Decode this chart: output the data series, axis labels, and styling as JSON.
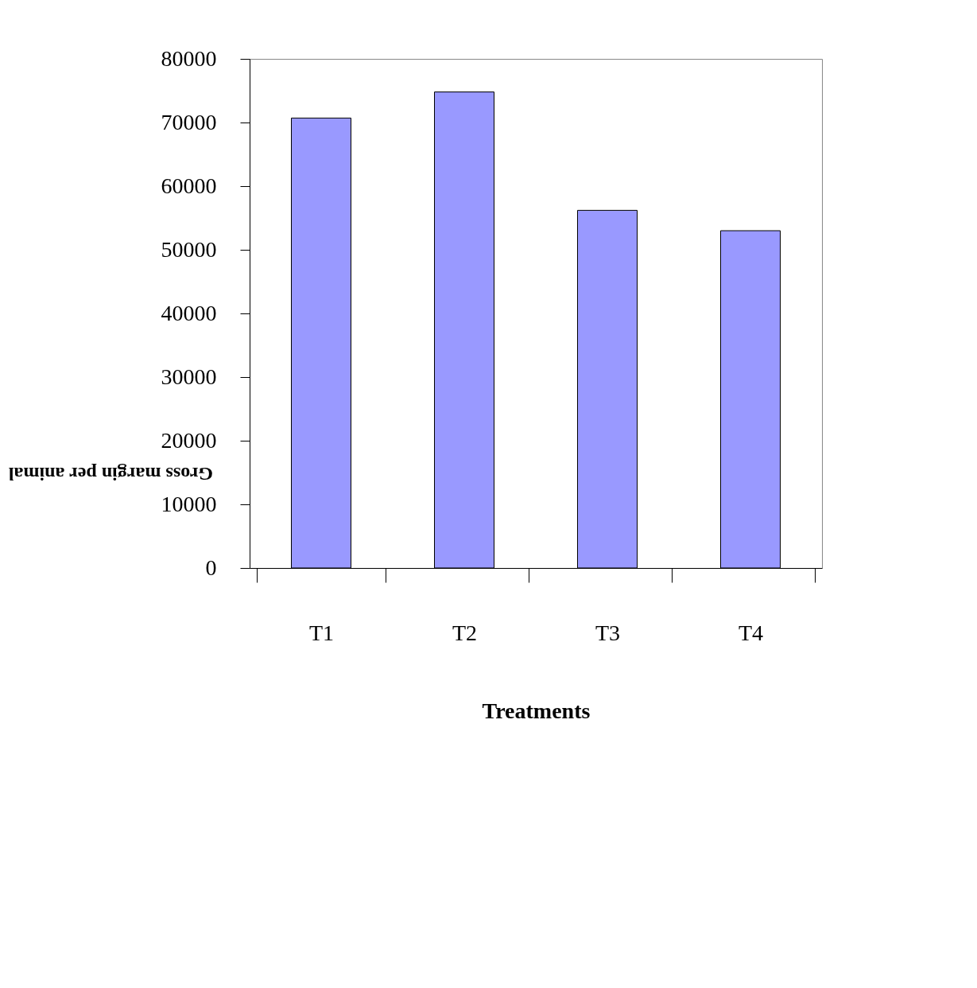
{
  "chart_data": {
    "type": "bar",
    "xlabel": "Treatments",
    "ylabel": "Gross margin per animal",
    "categories": [
      "T1",
      "T2",
      "T3",
      "T4"
    ],
    "values": [
      70700,
      74800,
      56200,
      53000
    ],
    "color": "#9999ff",
    "ylim": [
      0,
      80000
    ],
    "yticks": [
      0,
      10000,
      20000,
      30000,
      40000,
      50000,
      60000,
      70000,
      80000
    ],
    "grid": false
  }
}
